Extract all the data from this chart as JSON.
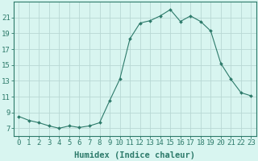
{
  "x": [
    0,
    1,
    2,
    3,
    4,
    5,
    6,
    7,
    8,
    9,
    10,
    11,
    12,
    13,
    14,
    15,
    16,
    17,
    18,
    19,
    20,
    21,
    22,
    23
  ],
  "y": [
    8.5,
    8.0,
    7.7,
    7.3,
    7.0,
    7.3,
    7.1,
    7.3,
    7.7,
    10.5,
    13.2,
    18.3,
    20.3,
    20.6,
    21.2,
    22.0,
    20.5,
    21.2,
    20.5,
    19.3,
    15.2,
    13.2,
    11.5,
    11.1
  ],
  "line_color": "#2d7a6a",
  "marker": "D",
  "marker_size": 2.0,
  "bg_color": "#d8f5f0",
  "grid_color": "#b8d8d4",
  "axis_color": "#2d7a6a",
  "tick_color": "#2d7a6a",
  "xlabel": "Humidex (Indice chaleur)",
  "xlim": [
    -0.5,
    23.5
  ],
  "ylim": [
    6.0,
    23.0
  ],
  "yticks": [
    7,
    9,
    11,
    13,
    15,
    17,
    19,
    21
  ],
  "xticks": [
    0,
    1,
    2,
    3,
    4,
    5,
    6,
    7,
    8,
    9,
    10,
    11,
    12,
    13,
    14,
    15,
    16,
    17,
    18,
    19,
    20,
    21,
    22,
    23
  ],
  "font_size": 6.5,
  "label_font_size": 7.5
}
